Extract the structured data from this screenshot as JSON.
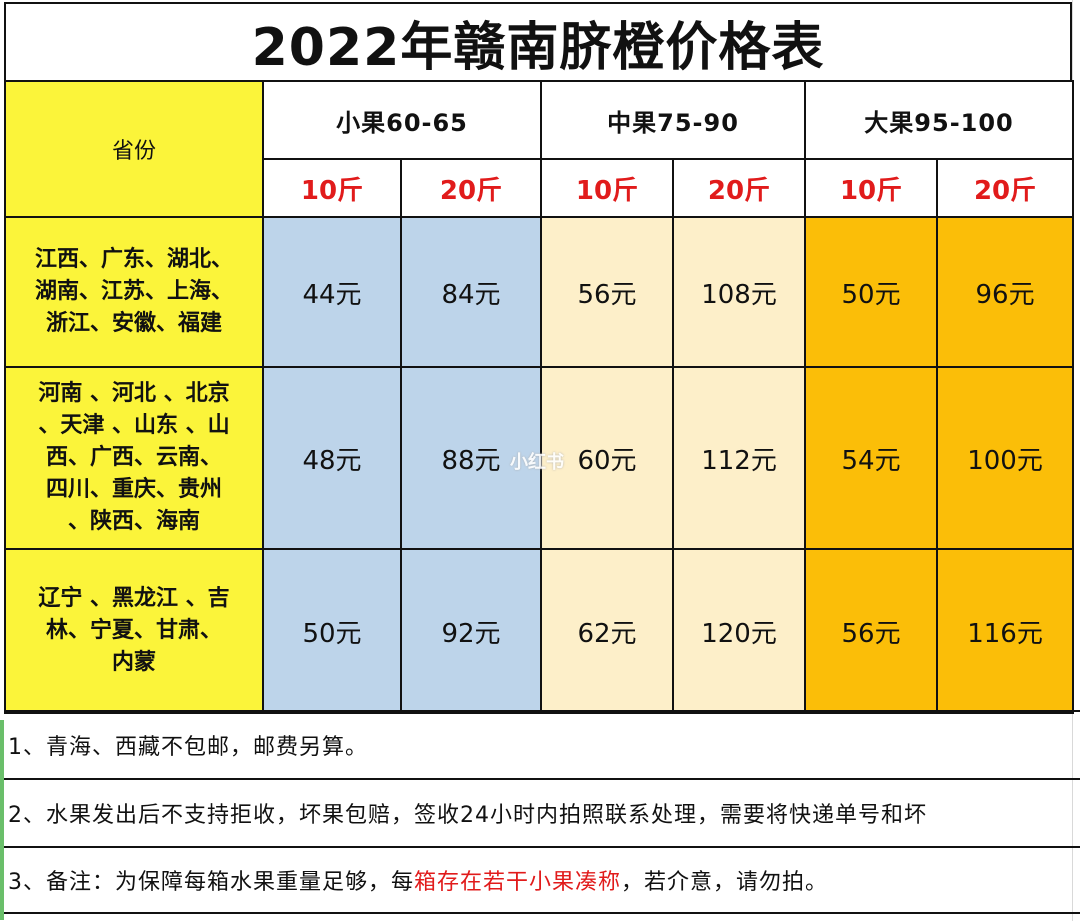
{
  "title": "2022年赣南脐橙价格表",
  "header": {
    "province_label": "省份",
    "groups": [
      "小果60-65",
      "中果75-90",
      "大果95-100"
    ],
    "weights": [
      "10斤",
      "20斤",
      "10斤",
      "20斤",
      "10斤",
      "20斤"
    ]
  },
  "rows": [
    {
      "provinces": [
        "江西、广东、湖北、",
        "湖南、江苏、上海、",
        "浙江、安徽、福建"
      ],
      "prices": [
        "44元",
        "84元",
        "56元",
        "108元",
        "50元",
        "96元"
      ]
    },
    {
      "provinces": [
        "河南 、河北 、北京",
        "、天津 、山东 、山",
        "西、广西、云南、",
        "四川、重庆、贵州",
        "、陕西、海南"
      ],
      "prices": [
        "48元",
        "88元",
        "60元",
        "112元",
        "54元",
        "100元"
      ]
    },
    {
      "provinces": [
        "辽宁 、黑龙江 、吉",
        "林、宁夏、甘肃、",
        "内蒙"
      ],
      "prices": [
        "50元",
        "92元",
        "62元",
        "120元",
        "56元",
        "116元"
      ]
    }
  ],
  "notes": {
    "note1": "1、青海、西藏不包邮，邮费另算。",
    "note2": "2、水果发出后不支持拒收，坏果包赔，签收24小时内拍照联系处理，需要将快递单号和坏",
    "note3_a": "3、备注：为保障每箱水果重量足够，每",
    "note3_b": "箱存在若干小果凑称",
    "note3_c": "，若介意，请勿拍。"
  },
  "watermark": "小红书",
  "colors": {
    "province_bg": "#fbf43a",
    "small_bg": "#bdd4ea",
    "medium_bg": "#fdefc9",
    "large_bg": "#fbbe08",
    "weight_text": "#e11b1b"
  }
}
